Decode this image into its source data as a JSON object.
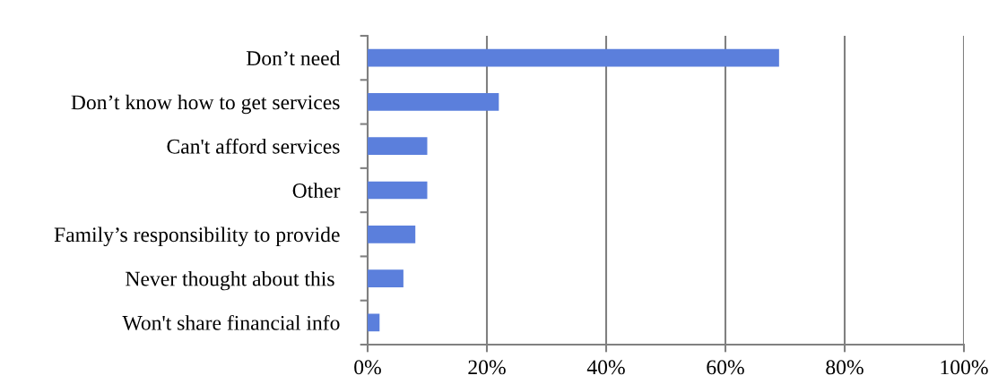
{
  "chart_data": {
    "type": "bar",
    "orientation": "horizontal",
    "categories": [
      "Don’t need",
      "Don’t know how to get services",
      "Can't afford services",
      "Other",
      "Family’s responsibility to provide",
      "Never thought about this ",
      "Won't share financial info"
    ],
    "values": [
      69,
      22,
      10,
      10,
      8,
      6,
      2
    ],
    "color": "#5b7fdc",
    "xlim": [
      0,
      100
    ],
    "xticks": [
      {
        "value": 0,
        "label": "0%"
      },
      {
        "value": 20,
        "label": "20%"
      },
      {
        "value": 40,
        "label": "40%"
      },
      {
        "value": 60,
        "label": "60%"
      },
      {
        "value": 80,
        "label": "80%"
      },
      {
        "value": 100,
        "label": "100%"
      }
    ],
    "grid": "x"
  }
}
